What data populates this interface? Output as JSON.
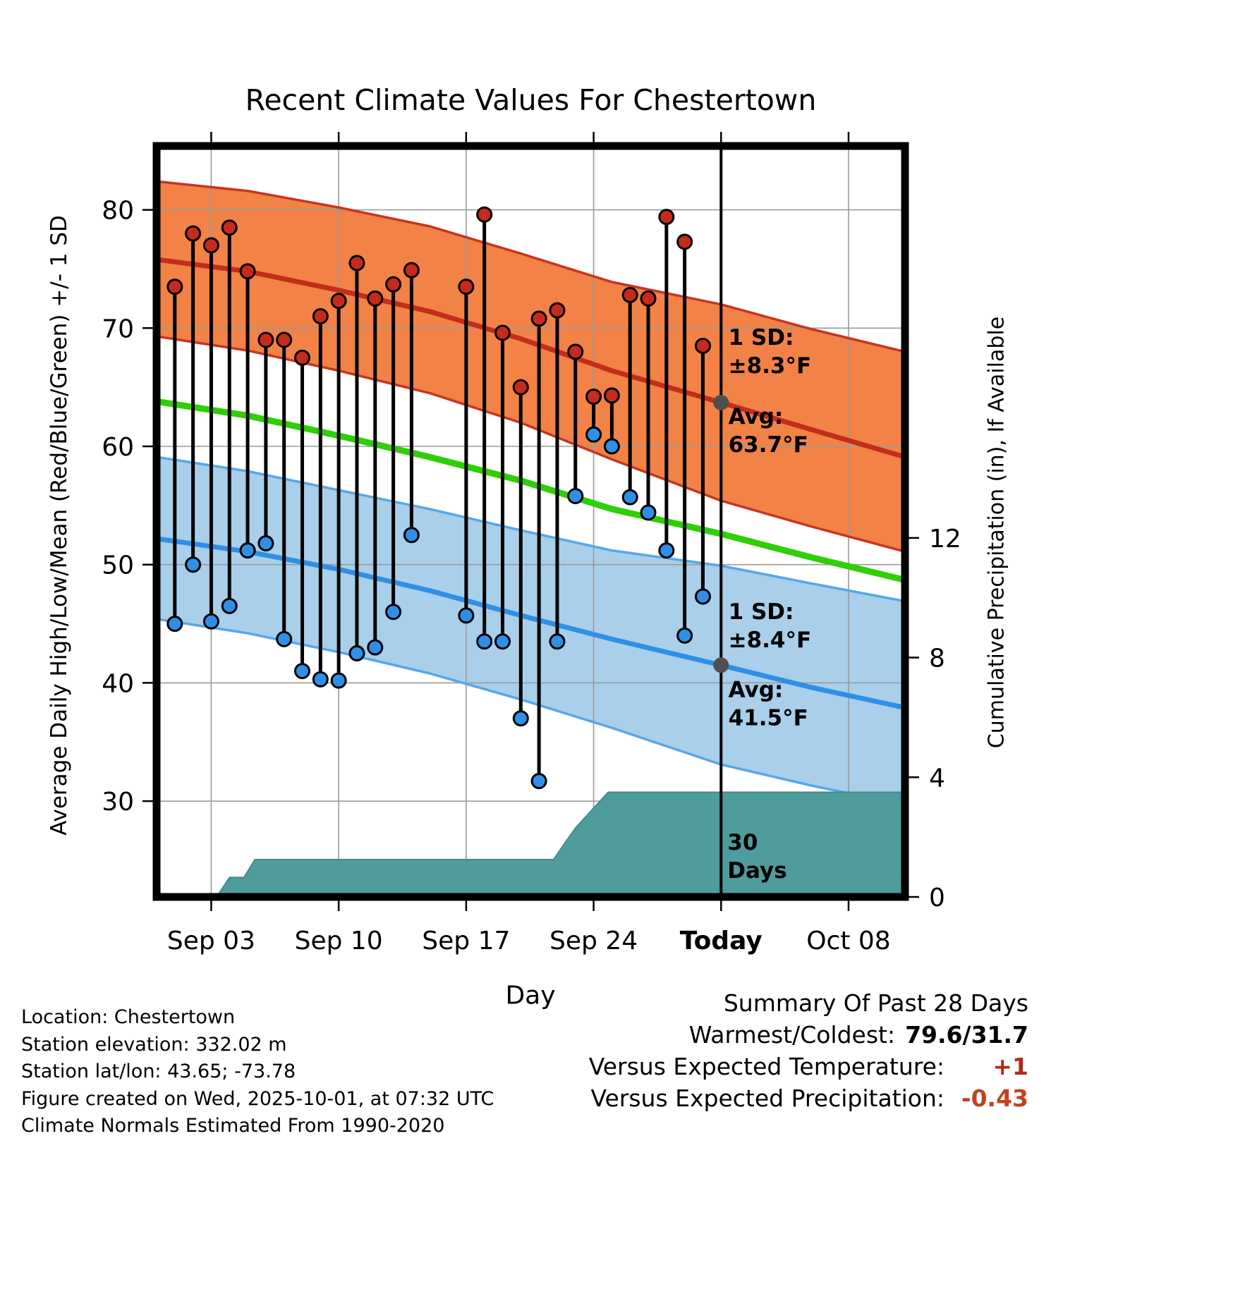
{
  "title": "Recent Climate Values For Chestertown",
  "footer_left": {
    "lines": [
      "Location: Chestertown",
      "Station elevation: 332.02 m",
      "Station lat/lon: 43.65; -73.78",
      "Figure created on Wed, 2025-10-01, at 07:32 UTC",
      "Climate Normals Estimated From 1990-2020"
    ]
  },
  "summary": {
    "title": "Summary Of Past 28 Days",
    "rows": [
      {
        "label": "Warmest/Coldest:",
        "value": "79.6/31.7",
        "value_color": "#000000"
      },
      {
        "label": "Versus Expected Temperature:",
        "value": "+1",
        "value_color": "#b02a18"
      },
      {
        "label": "Versus Expected Precipitation:",
        "value": "-0.43",
        "value_color": "#bf4320"
      }
    ]
  },
  "chart_data": {
    "type": "line",
    "title": "Recent Climate Values For Chestertown",
    "xlabel": "Day",
    "ylabel_left": "Average Daily High/Low/Mean (Red/Blue/Green) +/- 1 SD",
    "ylabel_right": "Cumulative Precipitation (in), If Available",
    "grid": true,
    "x_axis": {
      "min": 0,
      "max": 41.1,
      "ticks": [
        {
          "day": 3,
          "label": "Sep 03",
          "bold": false
        },
        {
          "day": 10,
          "label": "Sep 10",
          "bold": false
        },
        {
          "day": 17,
          "label": "Sep 17",
          "bold": false
        },
        {
          "day": 24,
          "label": "Sep 24",
          "bold": false
        },
        {
          "day": 31,
          "label": "Today",
          "bold": true
        },
        {
          "day": 38,
          "label": "Oct 08",
          "bold": false
        }
      ]
    },
    "y_left": {
      "min": 21.9,
      "max": 85.4,
      "ticks": [
        30,
        40,
        50,
        60,
        70,
        80
      ]
    },
    "y_right": {
      "min": 0,
      "max": 25.1,
      "ticks": [
        0,
        4,
        8,
        12
      ]
    },
    "normals": {
      "days": [
        0,
        5,
        10,
        15,
        20,
        25,
        31,
        36,
        41.1
      ],
      "high_upper": [
        82.4,
        81.6,
        80.2,
        78.6,
        76.3,
        73.9,
        72.0,
        69.9,
        68.0
      ],
      "high_mean": [
        75.8,
        74.8,
        73.2,
        71.4,
        69.1,
        66.4,
        63.7,
        61.4,
        59.1
      ],
      "high_lower": [
        69.3,
        68.1,
        66.4,
        64.5,
        62.0,
        58.9,
        55.4,
        53.2,
        51.1
      ],
      "mean": [
        63.8,
        62.6,
        60.9,
        59.1,
        57.1,
        54.7,
        52.6,
        50.6,
        48.7
      ],
      "low_upper": [
        59.1,
        57.9,
        56.3,
        54.7,
        52.9,
        51.2,
        49.9,
        48.4,
        46.9
      ],
      "low_mean": [
        52.2,
        51.1,
        49.6,
        47.8,
        45.7,
        43.7,
        41.5,
        39.6,
        37.9
      ],
      "low_lower": [
        45.4,
        44.2,
        42.6,
        40.8,
        38.6,
        36.2,
        33.1,
        31.3,
        29.7
      ]
    },
    "daily": {
      "days": [
        1,
        2,
        3,
        4,
        5,
        6,
        7,
        8,
        9,
        10,
        11,
        12,
        13,
        14,
        17,
        18,
        19,
        20,
        21,
        22,
        23,
        24,
        25,
        26,
        27,
        28,
        29,
        30
      ],
      "high": [
        73.5,
        78.0,
        77.0,
        78.5,
        74.8,
        69.0,
        69.0,
        67.5,
        71.0,
        72.3,
        75.5,
        72.5,
        73.7,
        74.9,
        73.5,
        79.6,
        69.6,
        65.0,
        70.8,
        71.5,
        68.0,
        64.2,
        64.3,
        72.8,
        72.5,
        79.4,
        77.3,
        68.5
      ],
      "low": [
        45.0,
        50.0,
        45.2,
        46.5,
        51.2,
        51.8,
        43.7,
        41.0,
        40.3,
        40.2,
        42.5,
        43.0,
        46.0,
        52.5,
        45.7,
        43.5,
        43.5,
        37.0,
        31.7,
        43.5,
        55.8,
        61.0,
        60.0,
        55.7,
        54.4,
        51.2,
        44.0,
        47.3
      ]
    },
    "precip_steps": {
      "days": [
        0,
        3.3,
        4.0,
        4.8,
        5.4,
        21.8,
        22.3,
        23.0,
        24.8,
        41.1
      ],
      "values": [
        0,
        0,
        0.65,
        0.65,
        1.25,
        1.25,
        1.7,
        2.3,
        3.5,
        3.5
      ]
    },
    "today_day": 31,
    "avg_markers": [
      {
        "day": 31,
        "temp": 63.7
      },
      {
        "day": 31,
        "temp": 41.5
      }
    ],
    "annotations": [
      {
        "lines": [
          "1 SD:",
          "±8.3°F"
        ],
        "day": 31.4,
        "temp": 68.6,
        "color": "#7f7f7f"
      },
      {
        "lines": [
          "Avg:",
          "63.7°F"
        ],
        "day": 31.4,
        "temp": 61.9,
        "color": "#7f7f7f"
      },
      {
        "lines": [
          "1 SD:",
          "±8.4°F"
        ],
        "day": 31.4,
        "temp": 45.4,
        "color": "#7f7f7f"
      },
      {
        "lines": [
          "Avg:",
          "41.5°F"
        ],
        "day": 31.4,
        "temp": 38.8,
        "color": "#7f7f7f"
      },
      {
        "lines": [
          "30",
          "Days"
        ],
        "day": 31.35,
        "temp": 25.9,
        "color": "#000000"
      }
    ],
    "colors": {
      "high_band_fill": "#f28246",
      "high_band_edge": "#c8341f",
      "high_mean_line": "#c22d1c",
      "high_dot": "#c62a1b",
      "low_band_fill": "#a9cfea",
      "low_band_edge": "#56a7e8",
      "low_mean_line": "#2f8fe6",
      "low_dot": "#2f8fe6",
      "mean_line": "#2fcf06",
      "precip_fill": "#4f9c9d",
      "precip_edge": "#428b8c",
      "grid": "#9a9a9a",
      "stem": "#000000",
      "today_line": "#000000",
      "avg_marker": "#4f4f4f"
    }
  }
}
